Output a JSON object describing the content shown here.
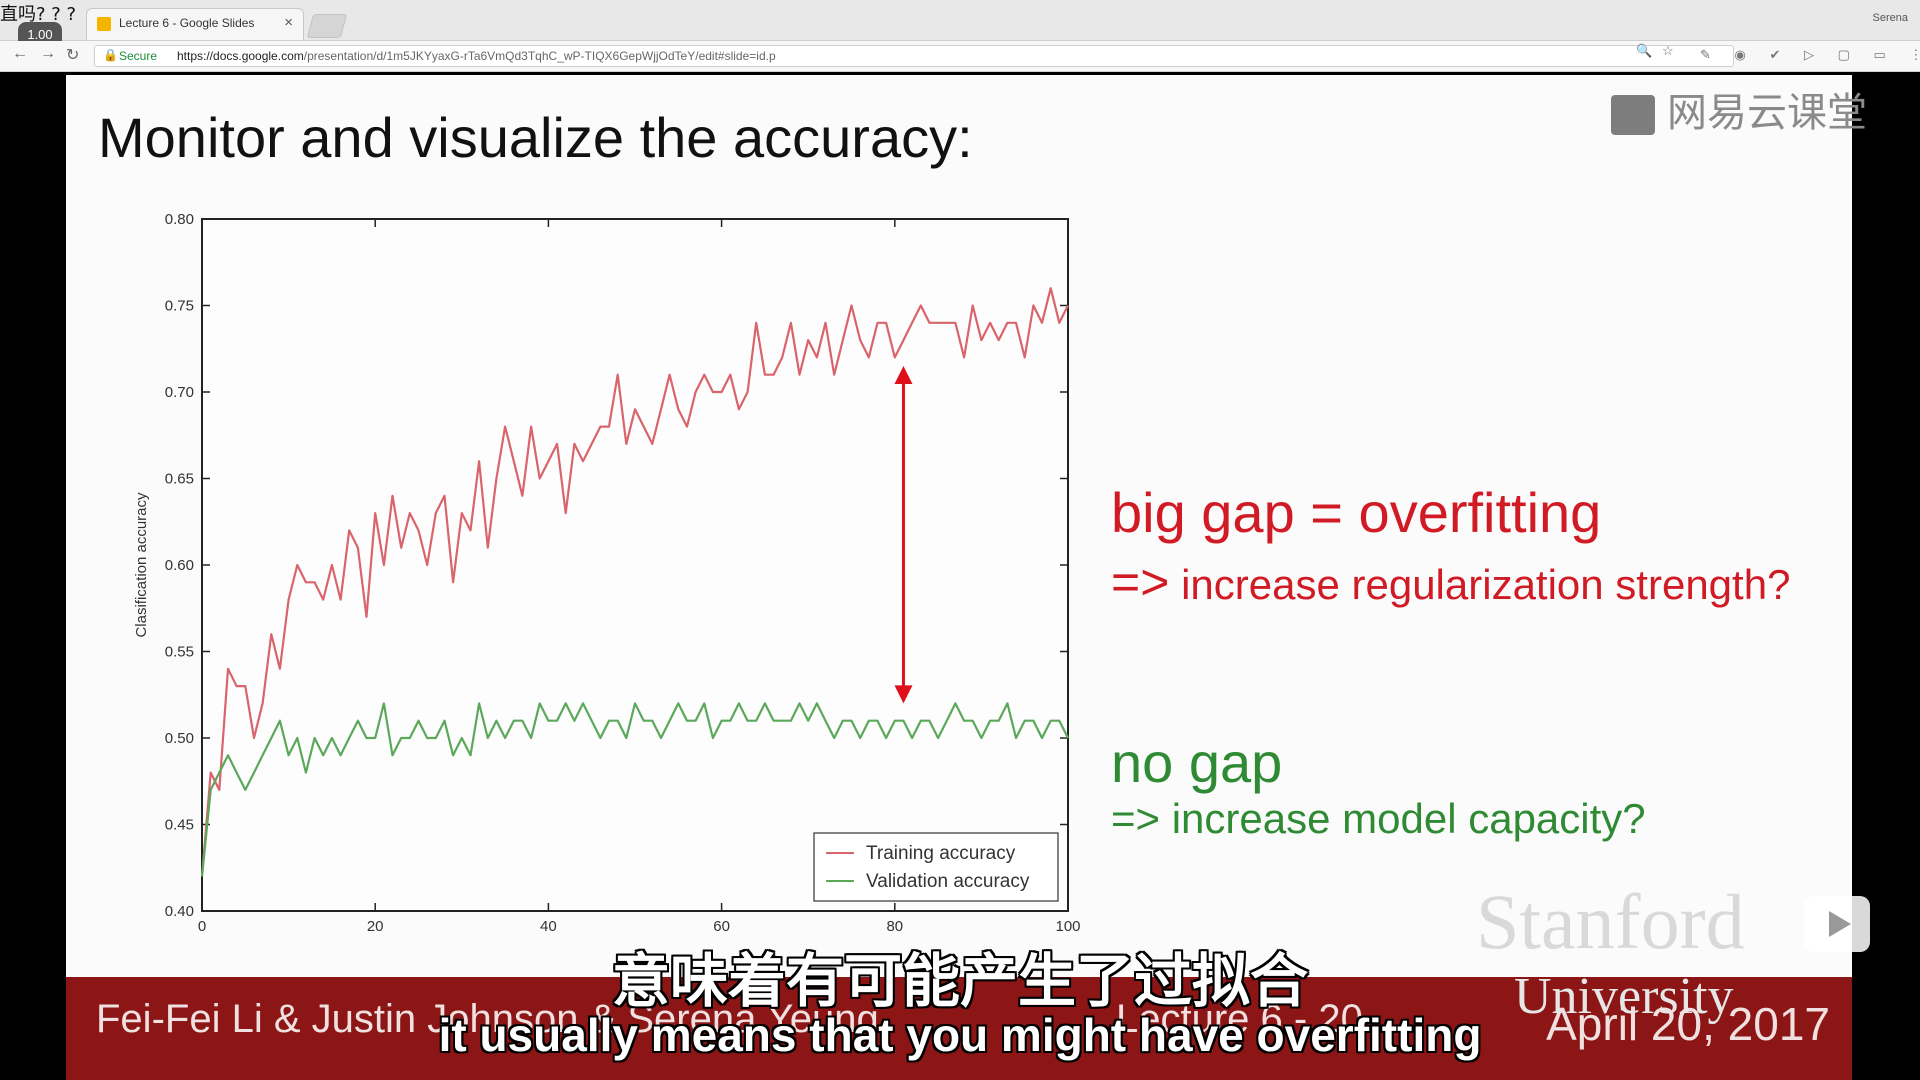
{
  "browser": {
    "tab_title": "Lecture 6 - Google Slides",
    "tab_close": "×",
    "profile_name": "Serena",
    "secure_label": "Secure",
    "url_host": "https://docs.google.com",
    "url_path": "/presentation/d/1m5JKYyaxG-rTa6VmQd3TqhC_wP-TIQX6GepWjjOdTeY/edit#slide=id.p"
  },
  "player_overlay": {
    "speed_text": "直吗? ? ?",
    "speed_badge": "1.00"
  },
  "watermark": {
    "text": "网易云课堂"
  },
  "slide": {
    "title": "Monitor and visualize the accuracy:",
    "big_gap_title": "big gap = overfitting",
    "big_gap_arrow": "=>",
    "big_gap_action": "increase regularization strength?",
    "no_gap_title": "no gap",
    "no_gap_action": "=> increase model capacity?",
    "stanford": "Stanford",
    "university": "University",
    "footer_authors": "Fei-Fei Li & Justin Johnson & Serena Yeung",
    "footer_lecture": "Lecture 6 - 20",
    "footer_date": "April 20, 2017"
  },
  "subtitles": {
    "chinese": "意味着有可能产生了过拟合",
    "english": "it usually means that you might have overfitting"
  },
  "colors": {
    "training": "#d9646b",
    "validation": "#5ba85b",
    "gap_text": "#d11b24",
    "nogap_text": "#2f8a34",
    "footer": "#8c1515",
    "gap_arrow": "#e0101a"
  },
  "chart_data": {
    "type": "line",
    "xlabel": "",
    "ylabel": "Clasification accuracy",
    "xlim": [
      0,
      100
    ],
    "ylim": [
      0.4,
      0.8
    ],
    "xticks": [
      0,
      20,
      40,
      60,
      80,
      100
    ],
    "yticks": [
      "0.40",
      "0.45",
      "0.50",
      "0.55",
      "0.60",
      "0.65",
      "0.70",
      "0.75",
      "0.80"
    ],
    "legend_position": "lower-right",
    "grid": false,
    "series": [
      {
        "name": "Training accuracy",
        "x": [
          0,
          1,
          2,
          3,
          4,
          5,
          6,
          7,
          8,
          9,
          10,
          11,
          12,
          13,
          14,
          15,
          16,
          17,
          18,
          19,
          20,
          21,
          22,
          23,
          24,
          25,
          26,
          27,
          28,
          29,
          30,
          31,
          32,
          33,
          34,
          35,
          36,
          37,
          38,
          39,
          40,
          41,
          42,
          43,
          44,
          45,
          46,
          47,
          48,
          49,
          50,
          51,
          52,
          53,
          54,
          55,
          56,
          57,
          58,
          59,
          60,
          61,
          62,
          63,
          64,
          65,
          66,
          67,
          68,
          69,
          70,
          71,
          72,
          73,
          74,
          75,
          76,
          77,
          78,
          79,
          80,
          81,
          82,
          83,
          84,
          85,
          86,
          87,
          88,
          89,
          90,
          91,
          92,
          93,
          94,
          95,
          96,
          97,
          98,
          99,
          100
        ],
        "values": [
          0.42,
          0.48,
          0.47,
          0.54,
          0.53,
          0.53,
          0.5,
          0.52,
          0.56,
          0.54,
          0.58,
          0.6,
          0.59,
          0.59,
          0.58,
          0.6,
          0.58,
          0.62,
          0.61,
          0.57,
          0.63,
          0.6,
          0.64,
          0.61,
          0.63,
          0.62,
          0.6,
          0.63,
          0.64,
          0.59,
          0.63,
          0.62,
          0.66,
          0.61,
          0.65,
          0.68,
          0.66,
          0.64,
          0.68,
          0.65,
          0.66,
          0.67,
          0.63,
          0.67,
          0.66,
          0.67,
          0.68,
          0.68,
          0.71,
          0.67,
          0.69,
          0.68,
          0.67,
          0.69,
          0.71,
          0.69,
          0.68,
          0.7,
          0.71,
          0.7,
          0.7,
          0.71,
          0.69,
          0.7,
          0.74,
          0.71,
          0.71,
          0.72,
          0.74,
          0.71,
          0.73,
          0.72,
          0.74,
          0.71,
          0.73,
          0.75,
          0.73,
          0.72,
          0.74,
          0.74,
          0.72,
          0.73,
          0.74,
          0.75,
          0.74,
          0.74,
          0.74,
          0.74,
          0.72,
          0.75,
          0.73,
          0.74,
          0.73,
          0.74,
          0.74,
          0.72,
          0.75,
          0.74,
          0.76,
          0.74,
          0.75
        ]
      },
      {
        "name": "Validation accuracy",
        "x": [
          0,
          1,
          2,
          3,
          4,
          5,
          6,
          7,
          8,
          9,
          10,
          11,
          12,
          13,
          14,
          15,
          16,
          17,
          18,
          19,
          20,
          21,
          22,
          23,
          24,
          25,
          26,
          27,
          28,
          29,
          30,
          31,
          32,
          33,
          34,
          35,
          36,
          37,
          38,
          39,
          40,
          41,
          42,
          43,
          44,
          45,
          46,
          47,
          48,
          49,
          50,
          51,
          52,
          53,
          54,
          55,
          56,
          57,
          58,
          59,
          60,
          61,
          62,
          63,
          64,
          65,
          66,
          67,
          68,
          69,
          70,
          71,
          72,
          73,
          74,
          75,
          76,
          77,
          78,
          79,
          80,
          81,
          82,
          83,
          84,
          85,
          86,
          87,
          88,
          89,
          90,
          91,
          92,
          93,
          94,
          95,
          96,
          97,
          98,
          99,
          100
        ],
        "values": [
          0.42,
          0.47,
          0.48,
          0.49,
          0.48,
          0.47,
          0.48,
          0.49,
          0.5,
          0.51,
          0.49,
          0.5,
          0.48,
          0.5,
          0.49,
          0.5,
          0.49,
          0.5,
          0.51,
          0.5,
          0.5,
          0.52,
          0.49,
          0.5,
          0.5,
          0.51,
          0.5,
          0.5,
          0.51,
          0.49,
          0.5,
          0.49,
          0.52,
          0.5,
          0.51,
          0.5,
          0.51,
          0.51,
          0.5,
          0.52,
          0.51,
          0.51,
          0.52,
          0.51,
          0.52,
          0.51,
          0.5,
          0.51,
          0.51,
          0.5,
          0.52,
          0.51,
          0.51,
          0.5,
          0.51,
          0.52,
          0.51,
          0.51,
          0.52,
          0.5,
          0.51,
          0.51,
          0.52,
          0.51,
          0.51,
          0.52,
          0.51,
          0.51,
          0.51,
          0.52,
          0.51,
          0.52,
          0.51,
          0.5,
          0.51,
          0.51,
          0.5,
          0.51,
          0.51,
          0.5,
          0.51,
          0.51,
          0.5,
          0.51,
          0.51,
          0.5,
          0.51,
          0.52,
          0.51,
          0.51,
          0.5,
          0.51,
          0.51,
          0.52,
          0.5,
          0.51,
          0.51,
          0.5,
          0.51,
          0.51,
          0.5
        ]
      }
    ],
    "annotation": {
      "type": "double-arrow",
      "x": 81,
      "y_top": 0.715,
      "y_bottom": 0.52
    }
  }
}
